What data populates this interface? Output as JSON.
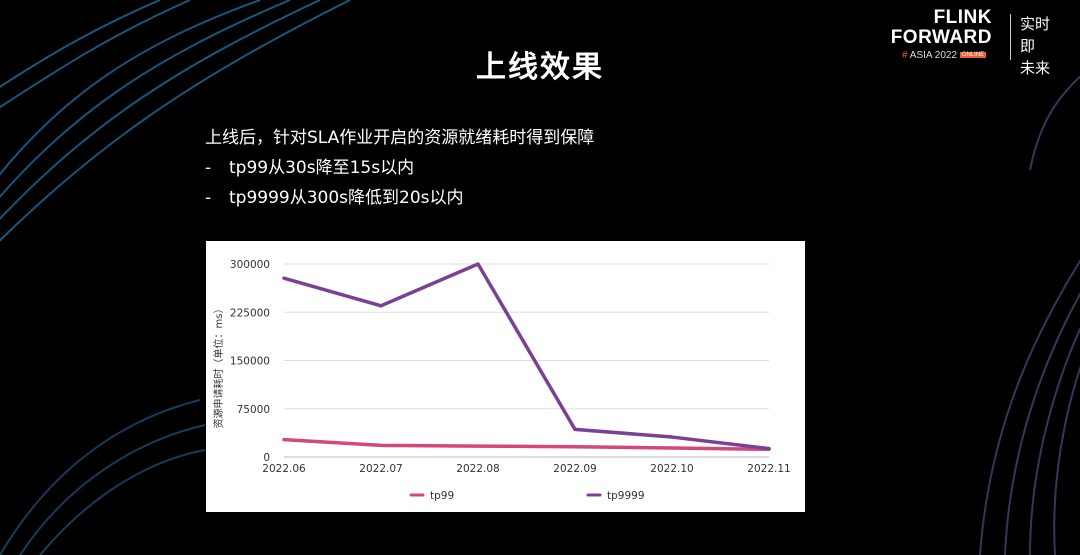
{
  "slide": {
    "title": "上线效果",
    "bullets": [
      {
        "dash": "",
        "text": "上线后，针对SLA作业开启的资源就绪耗时得到保障"
      },
      {
        "dash": "-",
        "text": "tp99从30s降至15s以内"
      },
      {
        "dash": "-",
        "text": "tp9999从300s降低到20s以内"
      }
    ]
  },
  "logo": {
    "line1": "FLINK",
    "line2": "FORWARD",
    "hash": "#",
    "event": "ASIA 2022",
    "badge": "ONLINE",
    "cn_line1": "实时即",
    "cn_line2": "未来"
  },
  "colors": {
    "tp99": "#d4477c",
    "tp9999": "#7b3f94",
    "grid": "#dddddd"
  },
  "chart_data": {
    "type": "line",
    "categories": [
      "2022.06",
      "2022.07",
      "2022.08",
      "2022.09",
      "2022.10",
      "2022.11"
    ],
    "series": [
      {
        "name": "tp99",
        "values": [
          27000,
          18000,
          17000,
          16000,
          14000,
          12000
        ]
      },
      {
        "name": "tp9999",
        "values": [
          278000,
          235000,
          300000,
          43000,
          31000,
          13000
        ]
      }
    ],
    "ylabel": "资源申请耗时（单位：ms）",
    "ylim": [
      0,
      300000
    ],
    "yticks": [
      "300000",
      "225000",
      "150000",
      "75000",
      "0"
    ],
    "grid": true,
    "legend": "bottom"
  }
}
